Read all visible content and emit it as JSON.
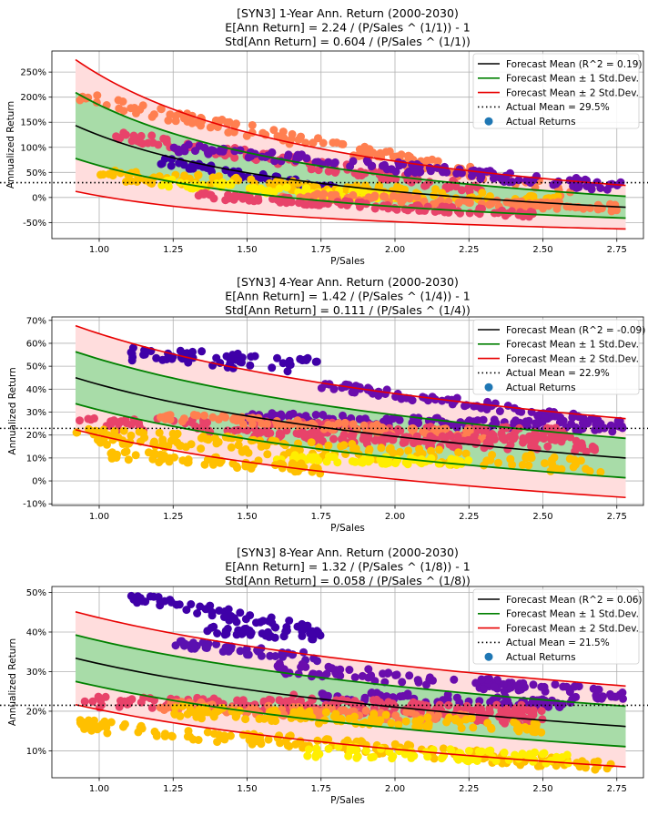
{
  "chart_data": [
    {
      "type": "scatter",
      "title_lines": [
        "[SYN3] 1-Year Ann. Return (2000-2030)",
        "E[Ann Return] = 2.24 / (P/Sales ^ (1/1)) - 1",
        "Std[Ann Return] = 0.604 / (P/Sales ^ (1/1))"
      ],
      "xlabel": "P/Sales",
      "ylabel": "Annualized Return",
      "xlim": [
        0.84,
        2.84
      ],
      "ylim": [
        -0.82,
        2.92
      ],
      "xticks": [
        1.0,
        1.25,
        1.5,
        1.75,
        2.0,
        2.25,
        2.5,
        2.75
      ],
      "xtick_labels": [
        "1.00",
        "1.25",
        "1.50",
        "1.75",
        "2.00",
        "2.25",
        "2.50",
        "2.75"
      ],
      "yticks": [
        -0.5,
        0,
        0.5,
        1.0,
        1.5,
        2.0,
        2.5
      ],
      "ytick_labels": [
        "-50%",
        "0%",
        "50%",
        "100%",
        "150%",
        "200%",
        "250%"
      ],
      "grid": true,
      "legend_position": "top-right",
      "forecast": {
        "a": 2.24,
        "s": 0.604,
        "n": 1,
        "x_range": [
          0.92,
          2.78
        ]
      },
      "actual_mean": 0.295,
      "legend": {
        "mean": "Forecast Mean (R^2 = 0.19)",
        "std1": "Forecast Mean ± 1 Std.Dev.",
        "std2": "Forecast Mean ± 2 Std.Dev.",
        "actual_mean": "Actual Mean = 29.5%",
        "actual_returns": "Actual Returns"
      },
      "scatter_bands": [
        {
          "color": "#ff7f50",
          "x": [
            0.92,
            2.6
          ],
          "y": [
            2.0,
            0.1
          ],
          "spread": 0.12
        },
        {
          "color": "#e8436a",
          "x": [
            1.05,
            2.3
          ],
          "y": [
            1.25,
            0.15
          ],
          "spread": 0.1
        },
        {
          "color": "#6a0dad",
          "x": [
            1.25,
            2.78
          ],
          "y": [
            1.0,
            0.2
          ],
          "spread": 0.1
        },
        {
          "color": "#3f00a8",
          "x": [
            1.2,
            1.8
          ],
          "y": [
            0.75,
            0.15
          ],
          "spread": 0.08
        },
        {
          "color": "#ffc000",
          "x": [
            1.0,
            2.6
          ],
          "y": [
            0.45,
            -0.1
          ],
          "spread": 0.12
        },
        {
          "color": "#ffee00",
          "x": [
            1.2,
            2.0
          ],
          "y": [
            0.3,
            0.0
          ],
          "spread": 0.08
        },
        {
          "color": "#ff7f50",
          "x": [
            1.6,
            2.75
          ],
          "y": [
            0.05,
            -0.2
          ],
          "spread": 0.08
        },
        {
          "color": "#e8436a",
          "x": [
            1.3,
            2.5
          ],
          "y": [
            0.05,
            -0.35
          ],
          "spread": 0.06
        }
      ]
    },
    {
      "type": "scatter",
      "title_lines": [
        "[SYN3] 4-Year Ann. Return (2000-2030)",
        "E[Ann Return] = 1.42 / (P/Sales ^ (1/4)) - 1",
        "Std[Ann Return] = 0.111 / (P/Sales ^ (1/4))"
      ],
      "xlabel": "P/Sales",
      "ylabel": "Annualized Return",
      "xlim": [
        0.84,
        2.84
      ],
      "ylim": [
        -0.107,
        0.715
      ],
      "xticks": [
        1.0,
        1.25,
        1.5,
        1.75,
        2.0,
        2.25,
        2.5,
        2.75
      ],
      "xtick_labels": [
        "1.00",
        "1.25",
        "1.50",
        "1.75",
        "2.00",
        "2.25",
        "2.50",
        "2.75"
      ],
      "yticks": [
        -0.1,
        0,
        0.1,
        0.2,
        0.3,
        0.4,
        0.5,
        0.6,
        0.7
      ],
      "ytick_labels": [
        "-10%",
        "0%",
        "10%",
        "20%",
        "30%",
        "40%",
        "50%",
        "60%",
        "70%"
      ],
      "grid": true,
      "legend_position": "top-right",
      "forecast": {
        "a": 1.42,
        "s": 0.111,
        "n": 4,
        "x_range": [
          0.92,
          2.78
        ]
      },
      "actual_mean": 0.229,
      "legend": {
        "mean": "Forecast Mean (R^2 = -0.09)",
        "std1": "Forecast Mean ± 1 Std.Dev.",
        "std2": "Forecast Mean ± 2 Std.Dev.",
        "actual_mean": "Actual Mean = 22.9%",
        "actual_returns": "Actual Returns"
      },
      "scatter_bands": [
        {
          "color": "#3f00a8",
          "x": [
            1.1,
            1.75
          ],
          "y": [
            0.555,
            0.5
          ],
          "spread": 0.035
        },
        {
          "color": "#6a0dad",
          "x": [
            1.75,
            2.78
          ],
          "y": [
            0.42,
            0.245
          ],
          "spread": 0.02
        },
        {
          "color": "#6a0dad",
          "x": [
            1.5,
            2.75
          ],
          "y": [
            0.28,
            0.23
          ],
          "spread": 0.02
        },
        {
          "color": "#e8436a",
          "x": [
            0.92,
            2.6
          ],
          "y": [
            0.25,
            0.2
          ],
          "spread": 0.03
        },
        {
          "color": "#ff7f50",
          "x": [
            1.2,
            2.3
          ],
          "y": [
            0.28,
            0.2
          ],
          "spread": 0.02
        },
        {
          "color": "#e8436a",
          "x": [
            1.5,
            2.7
          ],
          "y": [
            0.2,
            0.15
          ],
          "spread": 0.025
        },
        {
          "color": "#ffc000",
          "x": [
            0.92,
            2.7
          ],
          "y": [
            0.2,
            0.06
          ],
          "spread": 0.035
        },
        {
          "color": "#ffee00",
          "x": [
            1.6,
            2.25
          ],
          "y": [
            0.1,
            0.08
          ],
          "spread": 0.015
        },
        {
          "color": "#ffc000",
          "x": [
            1.0,
            1.75
          ],
          "y": [
            0.12,
            0.05
          ],
          "spread": 0.02
        }
      ]
    },
    {
      "type": "scatter",
      "title_lines": [
        "[SYN3] 8-Year Ann. Return (2000-2030)",
        "E[Ann Return] = 1.32 / (P/Sales ^ (1/8)) - 1",
        "Std[Ann Return] = 0.058 / (P/Sales ^ (1/8))"
      ],
      "xlabel": "P/Sales",
      "ylabel": "Annualized Return",
      "xlim": [
        0.84,
        2.84
      ],
      "ylim": [
        0.032,
        0.515
      ],
      "xticks": [
        1.0,
        1.25,
        1.5,
        1.75,
        2.0,
        2.25,
        2.5,
        2.75
      ],
      "xtick_labels": [
        "1.00",
        "1.25",
        "1.50",
        "1.75",
        "2.00",
        "2.25",
        "2.50",
        "2.75"
      ],
      "yticks": [
        0.1,
        0.2,
        0.3,
        0.4,
        0.5
      ],
      "ytick_labels": [
        "10%",
        "20%",
        "30%",
        "40%",
        "50%"
      ],
      "grid": true,
      "legend_position": "top-right",
      "forecast": {
        "a": 1.32,
        "s": 0.058,
        "n": 8,
        "x_range": [
          0.92,
          2.78
        ]
      },
      "actual_mean": 0.215,
      "legend": {
        "mean": "Forecast Mean (R^2 = 0.06)",
        "std1": "Forecast Mean ± 1 Std.Dev.",
        "std2": "Forecast Mean ± 2 Std.Dev.",
        "actual_mean": "Actual Mean = 21.5%",
        "actual_returns": "Actual Returns"
      },
      "scatter_bands": [
        {
          "color": "#3f00a8",
          "x": [
            1.1,
            1.75
          ],
          "y": [
            0.49,
            0.4
          ],
          "spread": 0.015
        },
        {
          "color": "#3f00a8",
          "x": [
            1.35,
            1.75
          ],
          "y": [
            0.405,
            0.39
          ],
          "spread": 0.01
        },
        {
          "color": "#5a10b0",
          "x": [
            1.25,
            1.75
          ],
          "y": [
            0.37,
            0.335
          ],
          "spread": 0.012
        },
        {
          "color": "#6a0dad",
          "x": [
            1.6,
            2.78
          ],
          "y": [
            0.31,
            0.24
          ],
          "spread": 0.015
        },
        {
          "color": "#6a0dad",
          "x": [
            1.75,
            2.6
          ],
          "y": [
            0.24,
            0.22
          ],
          "spread": 0.012
        },
        {
          "color": "#e8436a",
          "x": [
            0.95,
            2.5
          ],
          "y": [
            0.225,
            0.2
          ],
          "spread": 0.015
        },
        {
          "color": "#e8436a",
          "x": [
            1.6,
            2.5
          ],
          "y": [
            0.23,
            0.18
          ],
          "spread": 0.02
        },
        {
          "color": "#ff7f50",
          "x": [
            1.2,
            2.25
          ],
          "y": [
            0.215,
            0.18
          ],
          "spread": 0.012
        },
        {
          "color": "#ffc000",
          "x": [
            0.92,
            2.75
          ],
          "y": [
            0.165,
            0.06
          ],
          "spread": 0.015
        },
        {
          "color": "#ffee00",
          "x": [
            1.7,
            2.6
          ],
          "y": [
            0.1,
            0.08
          ],
          "spread": 0.015
        },
        {
          "color": "#ffc000",
          "x": [
            1.25,
            2.5
          ],
          "y": [
            0.2,
            0.16
          ],
          "spread": 0.015
        }
      ]
    }
  ]
}
